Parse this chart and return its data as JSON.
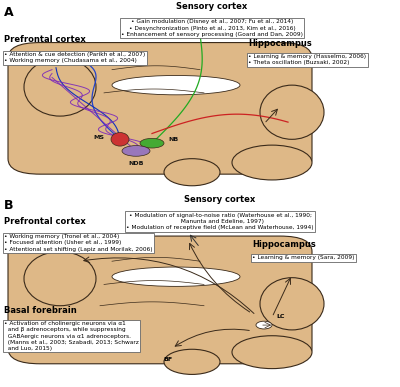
{
  "bg_color": "#ffffff",
  "brain_color": "#deb887",
  "brain_edge_color": "#3a2a1a",
  "panel_A": {
    "label": "A",
    "sensory_cortex_title": "Sensory cortex",
    "sensory_cortex_lines": [
      "• Gain modulation (Disney et al., 2007; Fu et al., 2014)",
      "• Desynchronization (Pinto et al., 2013, Kim et al., 2016)",
      "• Enhancement of sensory processing (Goard and Dan, 2009)"
    ],
    "prefrontal_title": "Prefrontal cortex",
    "prefrontal_lines": [
      "• Attention & cue detection (Parikh et al., 2007)",
      "• Working memory (Chudasama et al., 2004)"
    ],
    "hippocampus_title": "Hippocampus",
    "hippocampus_lines": [
      "• Learning & memory (Hasselmo, 2006)",
      "• Theta oscillation (Buzsaki, 2002)"
    ],
    "ms_label": "MS",
    "nb_label": "NB",
    "ndb_label": "NDB"
  },
  "panel_B": {
    "label": "B",
    "sensory_cortex_title": "Sensory cortex",
    "sensory_cortex_lines": [
      "• Modulation of signal-to-noise ratio (Waterhouse et al., 1990;",
      "  Manunta and Edeline, 1997)",
      "• Modulation of receptive field (McLean and Waterhouse, 1994)"
    ],
    "prefrontal_title": "Prefrontal cortex",
    "prefrontal_lines": [
      "• Working memory (Tronel et al., 2004)",
      "• Focused attention (Usher et al., 1999)",
      "• Attentional set shifting (Lapiz and Morilak, 2006)"
    ],
    "hippocampus_title": "Hippocampus",
    "hippocampus_lines": [
      "• Learning & memory (Sara, 2009)"
    ],
    "basal_title": "Basal forebrain",
    "basal_lines": [
      "• Activation of cholinergic neurons via α1",
      "  and β adrenoceptors, while suppressing",
      "  GABAergic neurons via α1 adrenoceptors.",
      "  (Manns et al., 2003; Szabadi, 2013; Schwarz",
      "  and Luo, 2015)"
    ],
    "lc_label": "LC",
    "bf_label": "BF"
  }
}
